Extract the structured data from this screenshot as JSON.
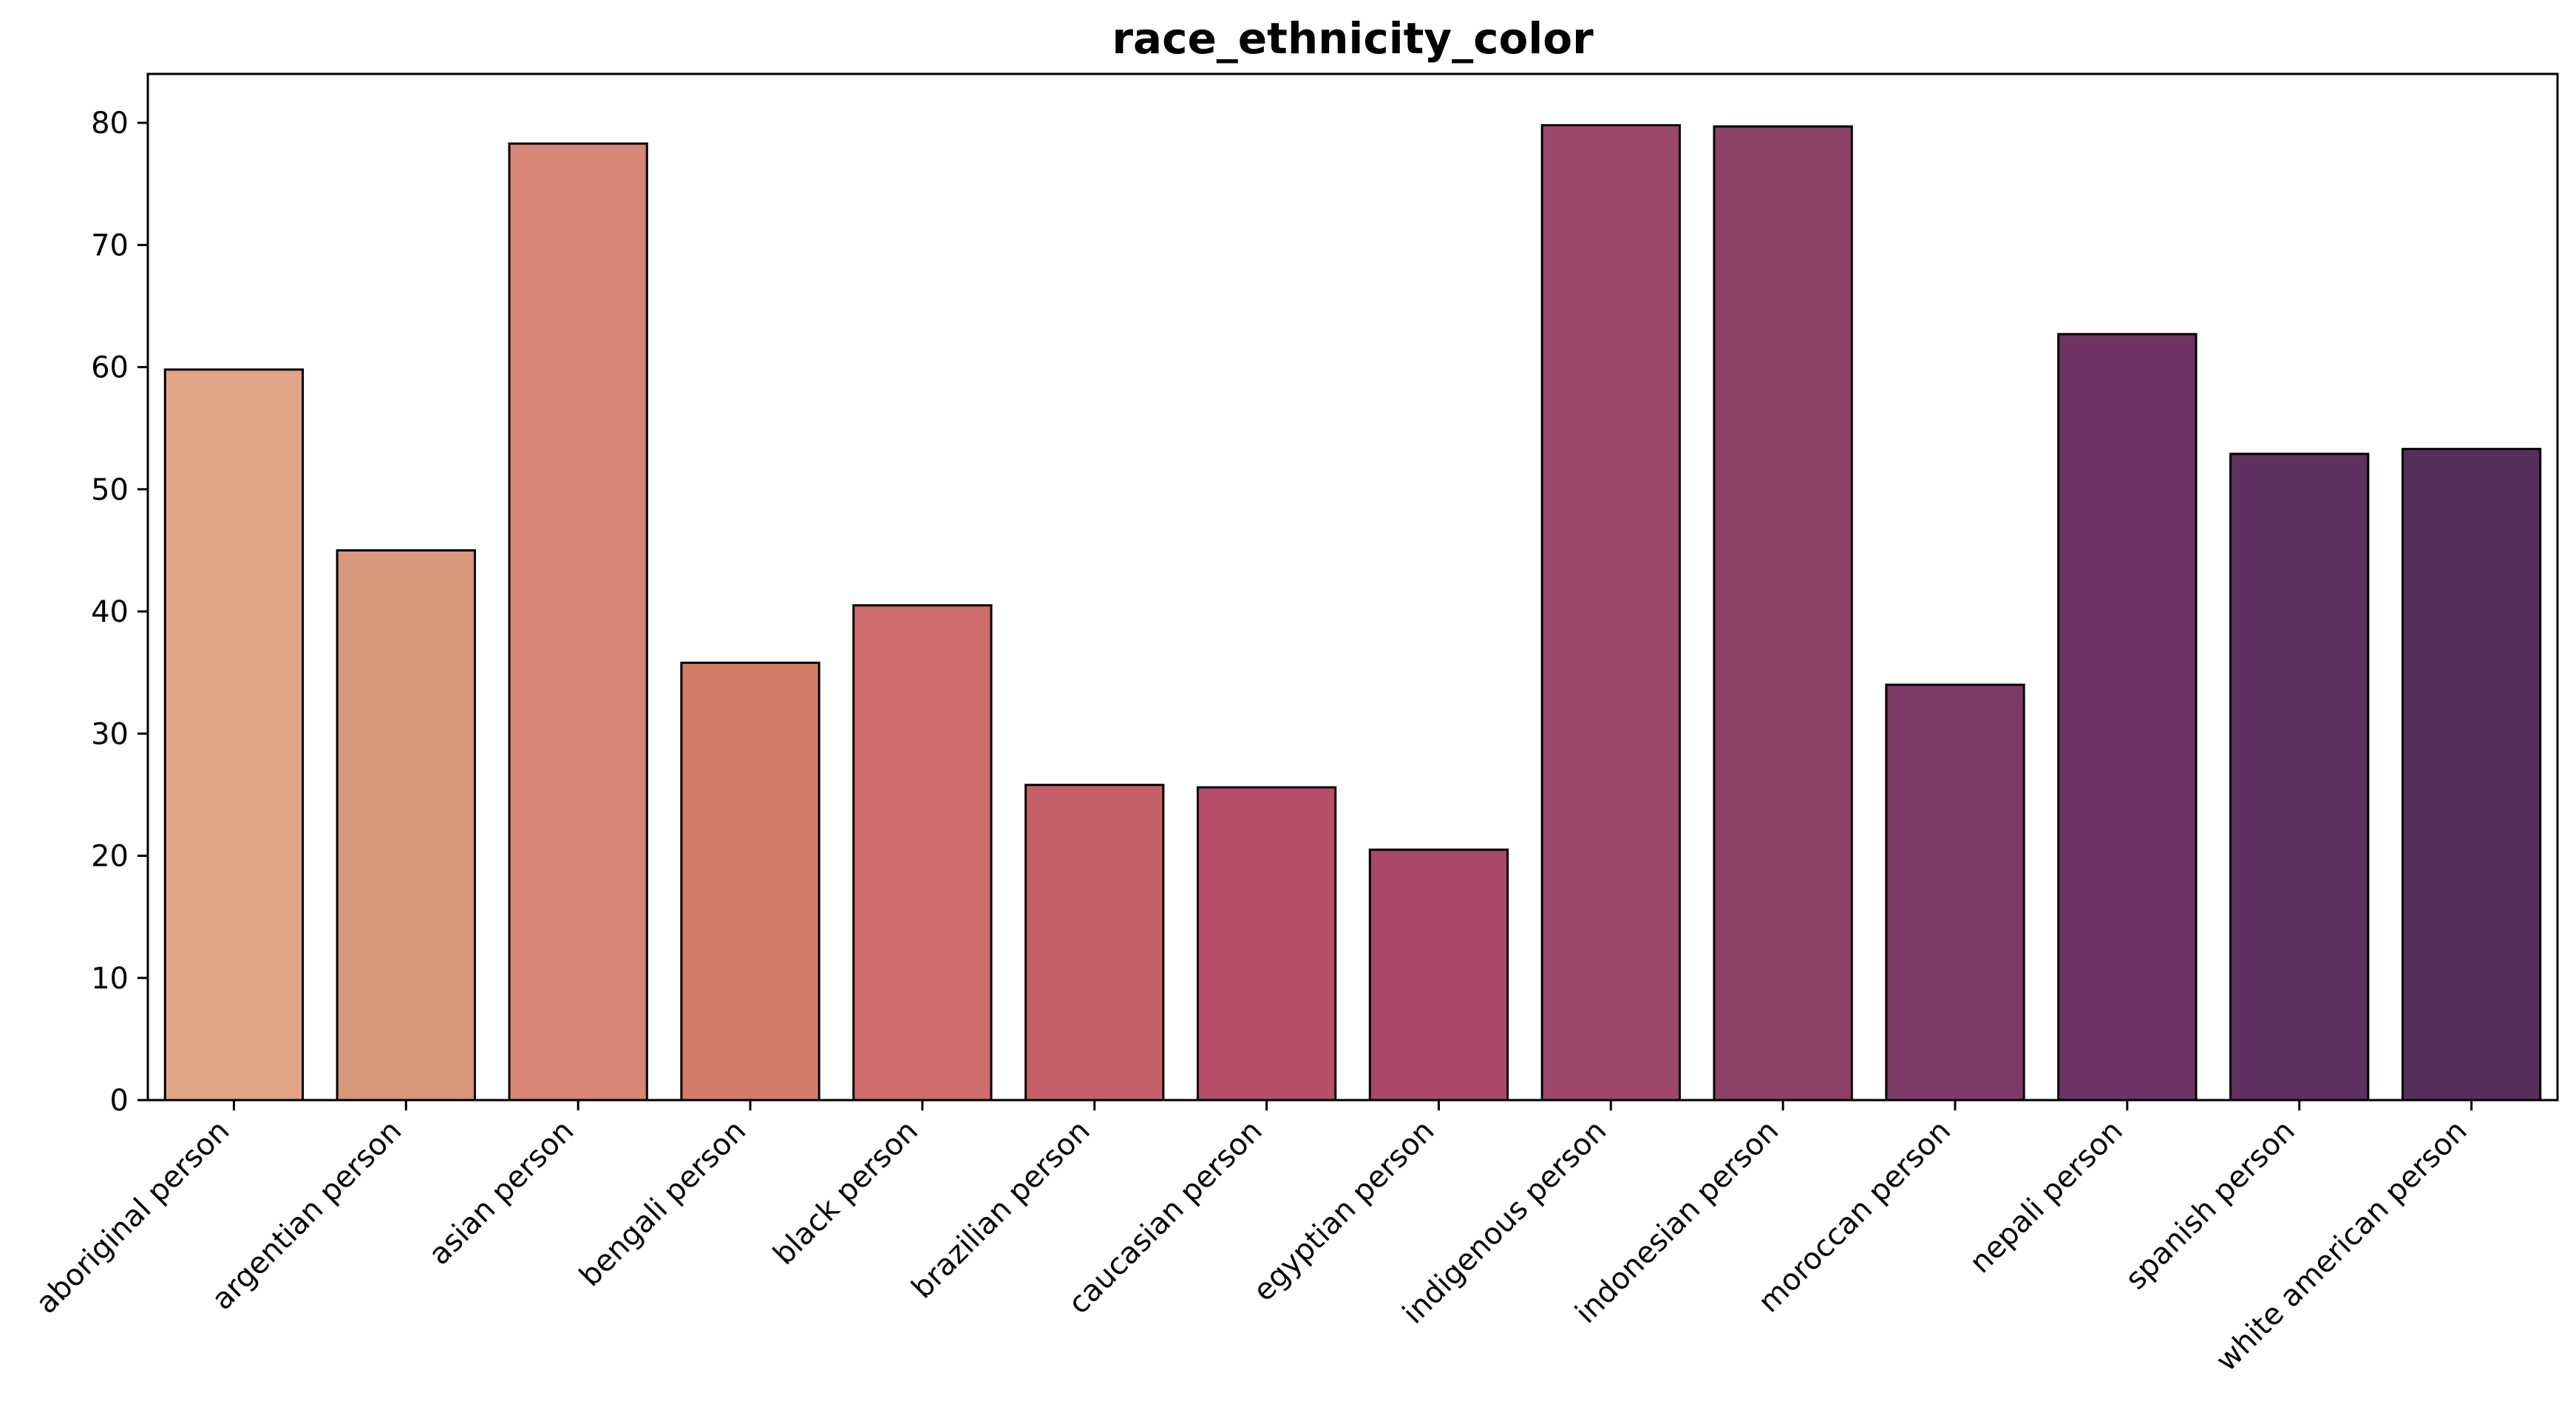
{
  "chart_data": {
    "type": "bar",
    "title": "race_ethnicity_color",
    "xlabel": "",
    "ylabel": "",
    "ylim": [
      0,
      84
    ],
    "yticks": [
      0,
      10,
      20,
      30,
      40,
      50,
      60,
      70,
      80
    ],
    "grid": false,
    "legend": "none",
    "categories": [
      "aboriginal person",
      "argentian person",
      "asian person",
      "bengali person",
      "black person",
      "brazilian person",
      "caucasian person",
      "egyptian person",
      "indigenous person",
      "indonesian person",
      "moroccan person",
      "nepali person",
      "spanish person",
      "white american person"
    ],
    "values": [
      59.8,
      45.0,
      78.3,
      35.8,
      40.5,
      25.8,
      25.6,
      20.5,
      79.8,
      79.7,
      34.0,
      62.7,
      52.9,
      53.3
    ],
    "colors": [
      "#dfa586",
      "#d9977c",
      "#d78676",
      "#d47c6c",
      "#ce6b6b",
      "#c5606b",
      "#b74e6a",
      "#aa4868",
      "#9d476b",
      "#8d4169",
      "#7d3a67",
      "#6e3464",
      "#5f2f5f",
      "#552f59"
    ]
  }
}
